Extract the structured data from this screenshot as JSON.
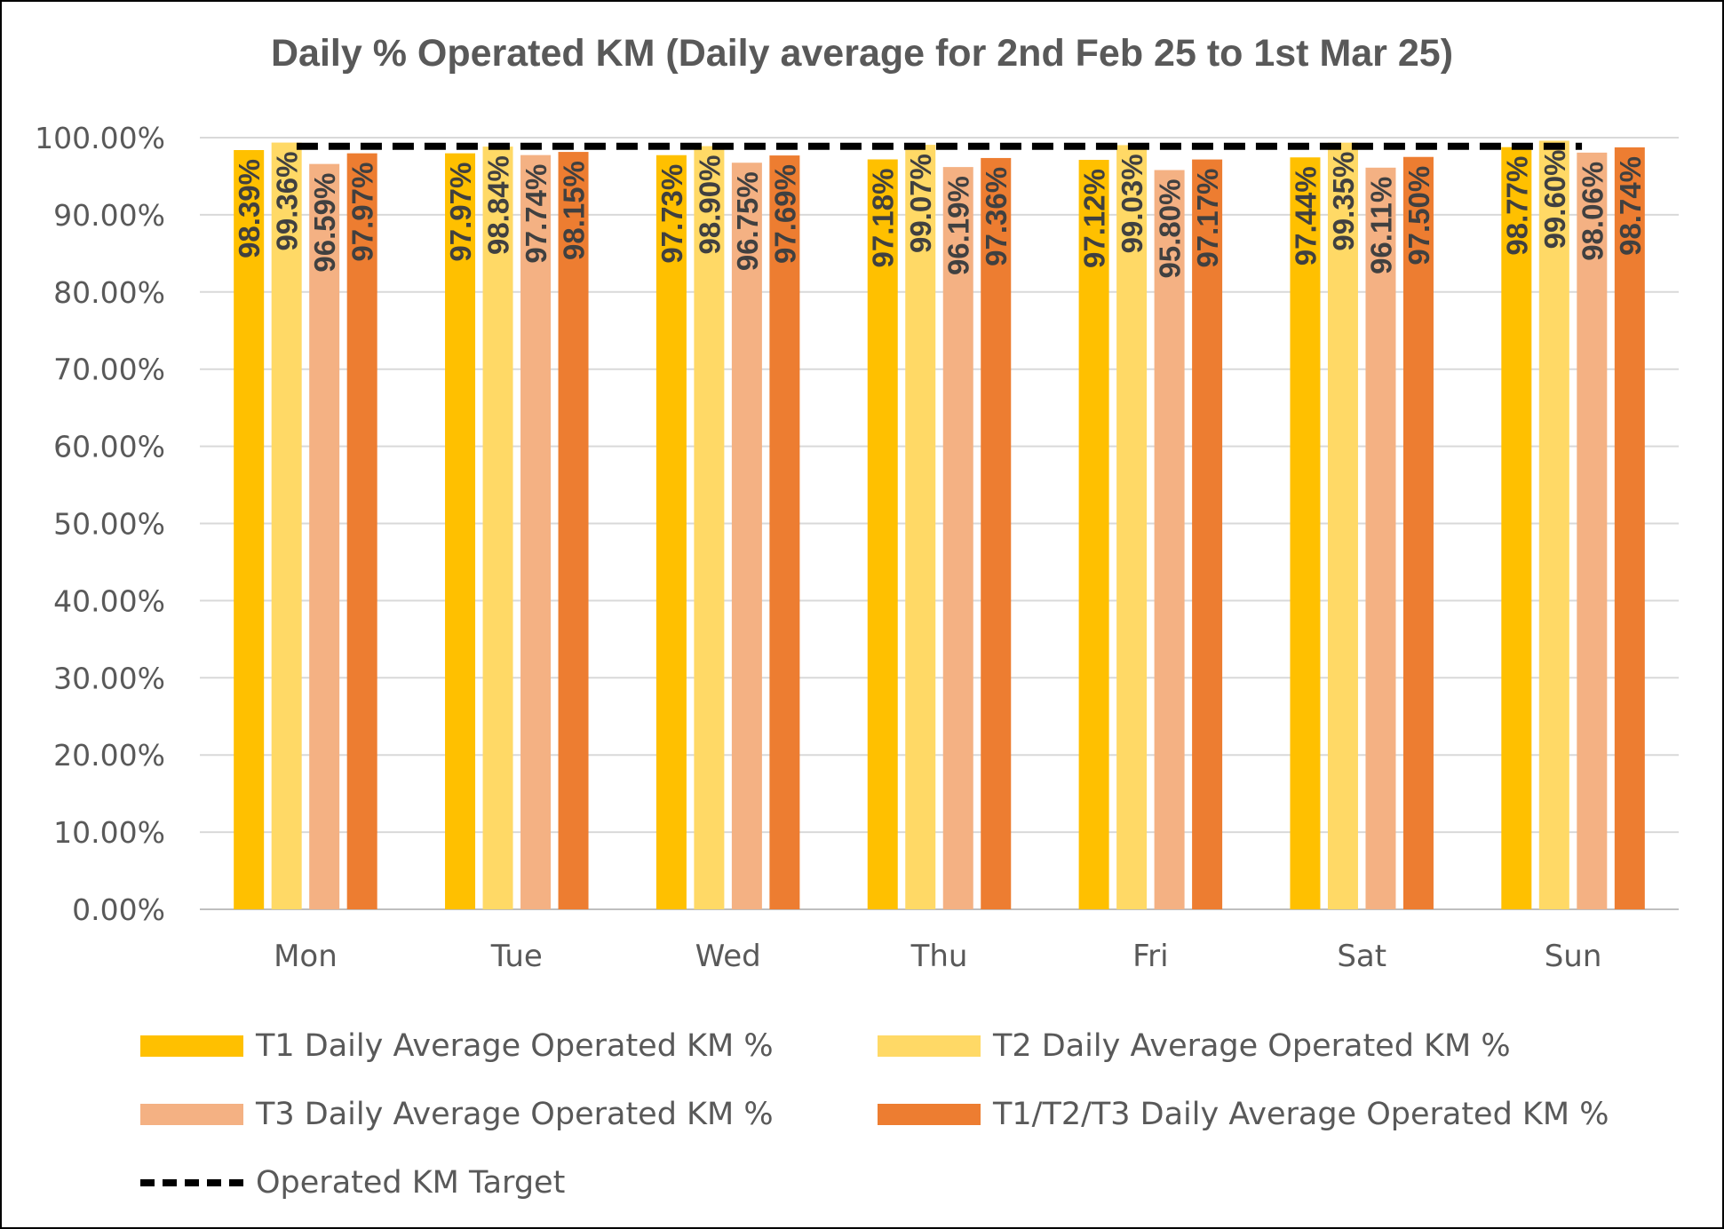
{
  "chart_data": {
    "type": "bar",
    "title": "Daily % Operated KM (Daily average for 2nd Feb 25 to 1st Mar 25)",
    "categories": [
      "Mon",
      "Tue",
      "Wed",
      "Thu",
      "Fri",
      "Sat",
      "Sun"
    ],
    "ylim": [
      0,
      100
    ],
    "y_ticks": [
      "0.00%",
      "10.00%",
      "20.00%",
      "30.00%",
      "40.00%",
      "50.00%",
      "60.00%",
      "70.00%",
      "80.00%",
      "90.00%",
      "100.00%"
    ],
    "grid": true,
    "legend_position": "bottom",
    "series": [
      {
        "name": "T1 Daily Average Operated KM %",
        "color": "#FFC000",
        "values": [
          98.39,
          97.97,
          97.73,
          97.18,
          97.12,
          97.44,
          98.77
        ],
        "labels": [
          "98.39%",
          "97.97%",
          "97.73%",
          "97.18%",
          "97.12%",
          "97.44%",
          "98.77%"
        ]
      },
      {
        "name": "T2 Daily Average Operated KM %",
        "color": "#FFD966",
        "values": [
          99.36,
          98.84,
          98.9,
          99.07,
          99.03,
          99.35,
          99.6
        ],
        "labels": [
          "99.36%",
          "98.84%",
          "98.90%",
          "99.07%",
          "99.03%",
          "99.35%",
          "99.60%"
        ]
      },
      {
        "name": "T3 Daily Average Operated KM %",
        "color": "#F4B183",
        "values": [
          96.59,
          97.74,
          96.75,
          96.19,
          95.8,
          96.11,
          98.06
        ],
        "labels": [
          "96.59%",
          "97.74%",
          "96.75%",
          "96.19%",
          "95.80%",
          "96.11%",
          "98.06%"
        ]
      },
      {
        "name": "T1/T2/T3 Daily Average Operated KM %",
        "color": "#ED7D31",
        "values": [
          97.97,
          98.15,
          97.69,
          97.36,
          97.17,
          97.5,
          98.74
        ],
        "labels": [
          "97.97%",
          "98.15%",
          "97.69%",
          "97.36%",
          "97.17%",
          "97.50%",
          "98.74%"
        ]
      }
    ],
    "target_line": {
      "name": "Operated KM Target",
      "value": 99,
      "color": "#000000",
      "style": "dashed"
    }
  }
}
